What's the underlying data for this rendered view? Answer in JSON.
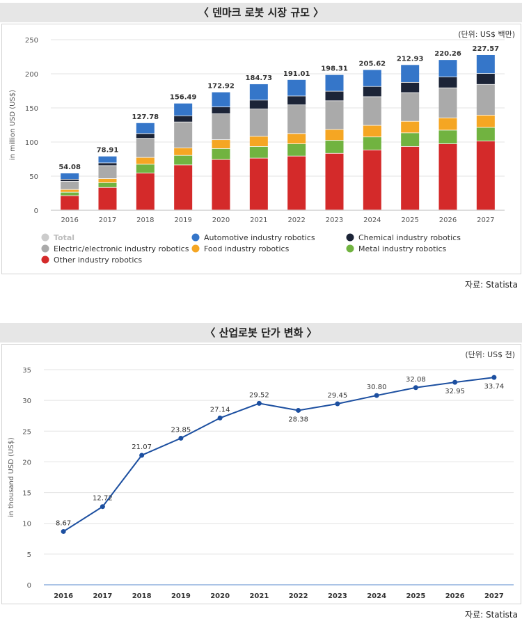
{
  "panel1": {
    "title": "〈 덴마크 로봇 시장 규모 〉",
    "unit": "(단위: US$ 백만)",
    "source": "자료: Statista"
  },
  "panel2": {
    "title": "〈 산업로봇 단가 변화 〉",
    "unit": "(단위: US$ 천)",
    "source": "자료: Statista"
  },
  "colors": {
    "other": "#d42a2a",
    "metal": "#71b340",
    "food": "#f5a623",
    "electric": "#aaaaaa",
    "chemical": "#1c2437",
    "automotive": "#3576c9",
    "line": "#1c4fa0"
  },
  "chart_data": [
    {
      "type": "bar",
      "stacked": true,
      "title": "덴마크 로봇 시장 규모",
      "ylabel": "in million USD (US$)",
      "ylim": [
        0,
        250
      ],
      "yticks": [
        0,
        50,
        100,
        150,
        200,
        250
      ],
      "categories": [
        "2016",
        "2017",
        "2018",
        "2019",
        "2020",
        "2021",
        "2022",
        "2023",
        "2024",
        "2025",
        "2026",
        "2027"
      ],
      "totals": [
        54.08,
        78.91,
        127.78,
        156.49,
        172.92,
        184.73,
        191.01,
        198.31,
        205.62,
        212.93,
        220.26,
        227.57
      ],
      "legend": [
        {
          "key": "total",
          "label": "Total",
          "inactive": true
        },
        {
          "key": "automotive",
          "label": "Automotive industry robotics"
        },
        {
          "key": "chemical",
          "label": "Chemical industry robotics"
        },
        {
          "key": "electric",
          "label": "Electric/electronic industry robotics"
        },
        {
          "key": "food",
          "label": "Food industry robotics"
        },
        {
          "key": "metal",
          "label": "Metal industry robotics"
        },
        {
          "key": "other",
          "label": "Other industry robotics"
        }
      ],
      "series": [
        {
          "key": "other",
          "name": "Other industry robotics",
          "values": [
            21,
            33,
            54,
            66,
            74,
            76,
            79,
            83,
            88,
            93,
            97,
            101
          ]
        },
        {
          "key": "metal",
          "name": "Metal industry robotics",
          "values": [
            5,
            7,
            13,
            14,
            16,
            17,
            18,
            19,
            19,
            20,
            20,
            20
          ]
        },
        {
          "key": "food",
          "name": "Food industry robotics",
          "values": [
            4,
            6,
            10,
            11,
            13,
            15,
            15,
            16,
            17,
            17,
            18,
            18
          ]
        },
        {
          "key": "electric",
          "name": "Electric/electronic industry robotics",
          "values": [
            12,
            19,
            28,
            38,
            38,
            40,
            42,
            42,
            42,
            42,
            44,
            45
          ]
        },
        {
          "key": "chemical",
          "name": "Chemical industry robotics",
          "values": [
            3,
            4,
            7,
            9,
            10,
            13,
            13,
            14,
            15,
            15,
            16,
            16
          ]
        },
        {
          "key": "automotive",
          "name": "Automotive industry robotics",
          "values": [
            9.08,
            9.91,
            15.78,
            18.49,
            21.92,
            23.73,
            24.01,
            24.31,
            24.62,
            25.93,
            25.26,
            27.57
          ]
        }
      ]
    },
    {
      "type": "line",
      "title": "산업로봇 단가 변화",
      "ylabel": "in thousand USD (US$)",
      "ylim": [
        0,
        35
      ],
      "yticks": [
        0,
        5,
        10,
        15,
        20,
        25,
        30,
        35
      ],
      "categories": [
        "2016",
        "2017",
        "2018",
        "2019",
        "2020",
        "2021",
        "2022",
        "2023",
        "2024",
        "2025",
        "2026",
        "2027"
      ],
      "values": [
        8.67,
        12.72,
        21.07,
        23.85,
        27.14,
        29.52,
        28.38,
        29.45,
        30.8,
        32.08,
        32.95,
        33.74
      ],
      "labels": [
        "8.67",
        "12.72",
        "21.07",
        "23.85",
        "27.14",
        "29.52",
        "28.38",
        "29.45",
        "30.80",
        "32.08",
        "32.95",
        "33.74"
      ]
    }
  ]
}
